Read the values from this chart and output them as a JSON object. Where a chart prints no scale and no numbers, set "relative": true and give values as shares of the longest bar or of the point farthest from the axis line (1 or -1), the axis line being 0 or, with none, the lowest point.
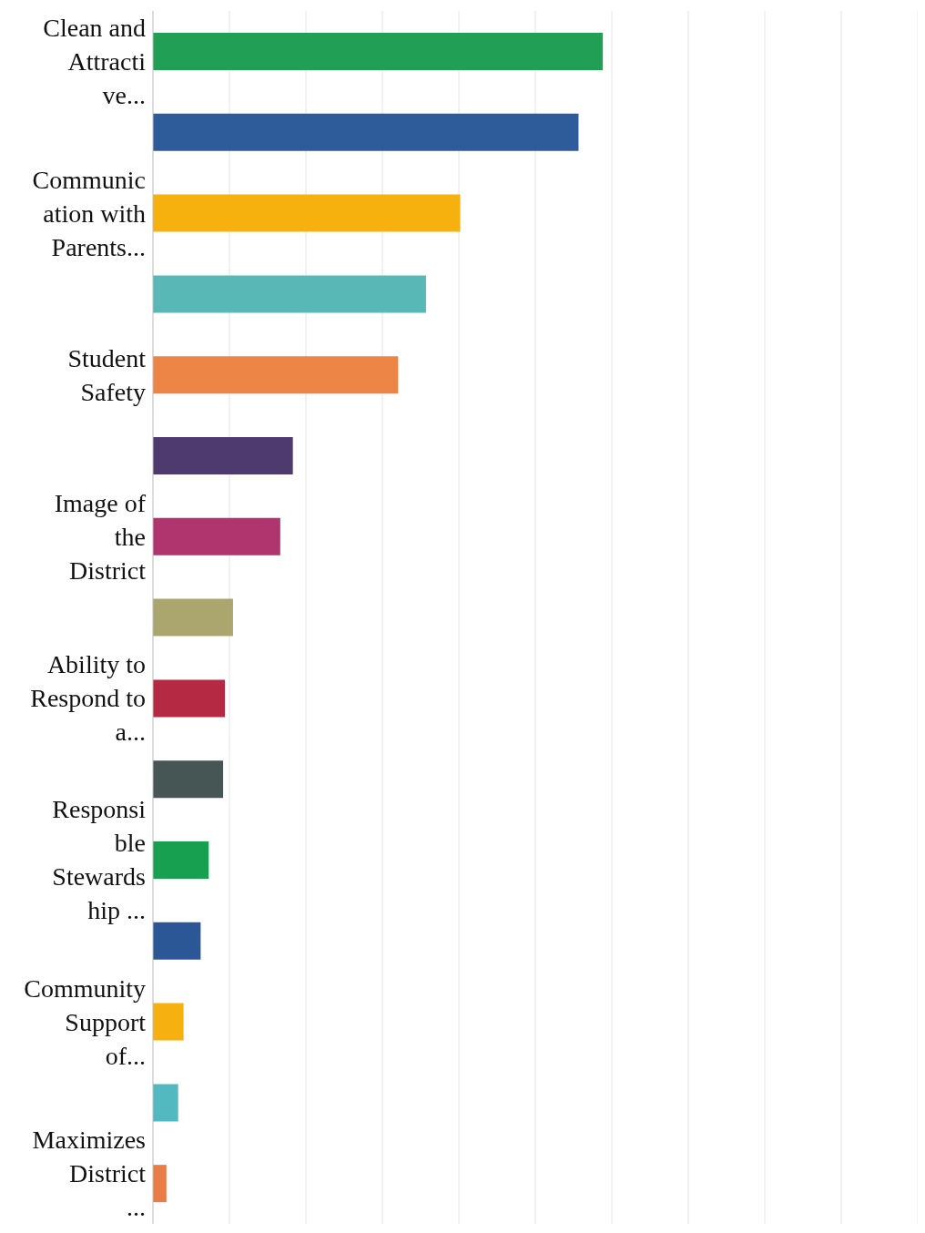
{
  "chart_data": {
    "type": "bar",
    "orientation": "horizontal",
    "relative": true,
    "grid": "x",
    "categories": [
      "Clean and Attractive...",
      null,
      "Communication with Parents...",
      null,
      "Student Safety",
      null,
      "Image of the District",
      null,
      "Ability to Respond to a...",
      null,
      "Responsible Stewardship ...",
      null,
      "Community Support of...",
      null,
      "Maximizes District..."
    ],
    "values": [
      1,
      0.946,
      0.683,
      0.607,
      0.545,
      0.311,
      0.283,
      0.178,
      0.16,
      0.156,
      0.124,
      0.106,
      0.068,
      0.056,
      0.03
    ],
    "colors": [
      "#21a055",
      "#2e5b9a",
      "#f6b10e",
      "#58b8b5",
      "#ec8546",
      "#4f3a70",
      "#b0356e",
      "#aba66e",
      "#b52a42",
      "#465655",
      "#16a050",
      "#2c5797",
      "#f6b110",
      "#53b9c0",
      "#e97d45"
    ]
  }
}
